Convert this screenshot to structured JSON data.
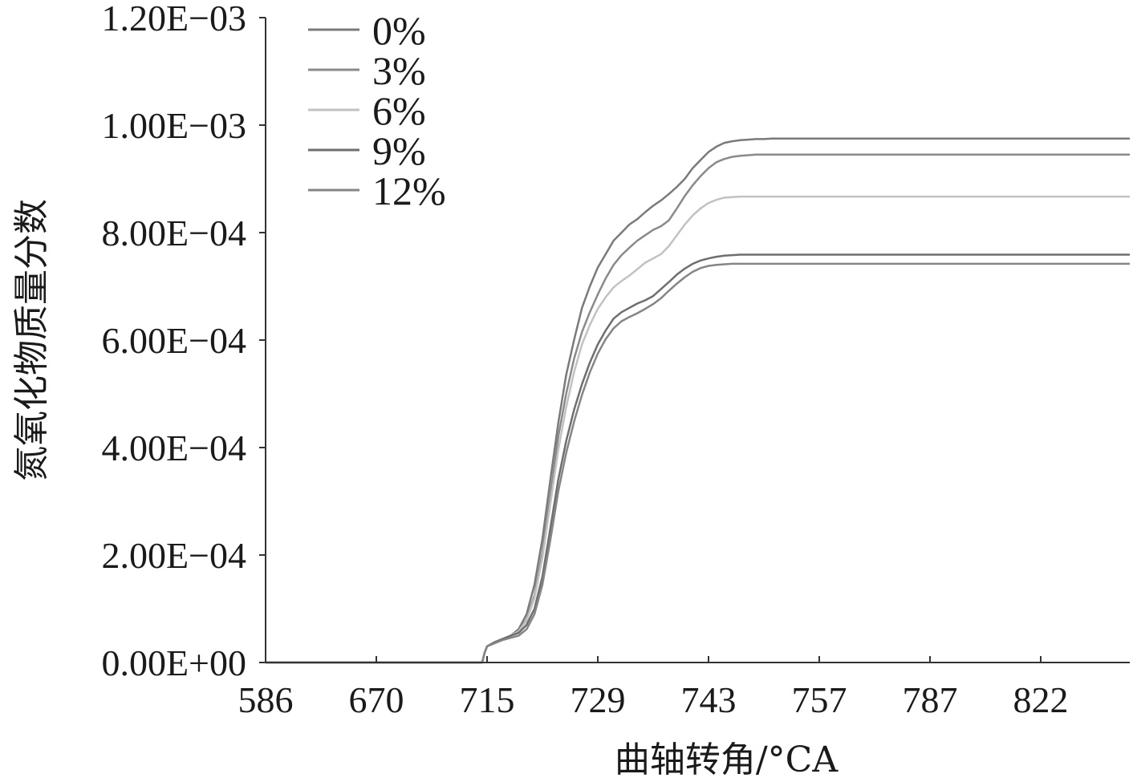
{
  "chart_data": {
    "type": "line",
    "xlabel": "曲轴转角/°CA",
    "ylabel": "氮氧化物质量分数",
    "x_tick_labels": [
      "586",
      "670",
      "715",
      "729",
      "743",
      "757",
      "787",
      "822"
    ],
    "y_tick_labels": [
      "0.00E+00",
      "2.00E−04",
      "4.00E−04",
      "6.00E−04",
      "8.00E−04",
      "1.00E−03",
      "1.20E−03"
    ],
    "ylim": [
      0,
      0.0012
    ],
    "grid": false,
    "legend_position": "top-left",
    "x": [
      713.0,
      714.0,
      715.0,
      716.0,
      717.0,
      718.0,
      719.0,
      720.0,
      721.0,
      722.0,
      723.0,
      724.0,
      725.0,
      726.0,
      727.0,
      728.0,
      729.0,
      730.0,
      731.0,
      732.0,
      733.0,
      734.0,
      735.0,
      736.0,
      737.0,
      738.0,
      739.0,
      740.0,
      741.0,
      742.0,
      743.0,
      744.0,
      745.0,
      746.0,
      747.0,
      748.0,
      749.0,
      750.0,
      751.0,
      752.0,
      753.0,
      754.0,
      755.0,
      756.0,
      757.0,
      762.0,
      787.0,
      822.0,
      850.0
    ],
    "series": [
      {
        "name": "0%",
        "color": "#7a7a7a",
        "values": [
          0.0,
          1.8e-05,
          3e-05,
          3.8e-05,
          4.4e-05,
          5e-05,
          6.2e-05,
          9e-05,
          0.000145,
          0.00023,
          0.00034,
          0.000445,
          0.000535,
          0.0006,
          0.00066,
          0.0007,
          0.000735,
          0.00076,
          0.000785,
          0.0008,
          0.000815,
          0.000825,
          0.000838,
          0.00085,
          0.00086,
          0.000872,
          0.000885,
          0.0009,
          0.00092,
          0.000935,
          0.00095,
          0.00096,
          0.000967,
          0.00097,
          0.000972,
          0.000973,
          0.000974,
          0.000974,
          0.000975,
          0.000975,
          0.000975,
          0.000975,
          0.000975,
          0.000975,
          0.000975,
          0.000975,
          0.000975,
          0.000975,
          0.000975
        ]
      },
      {
        "name": "3%",
        "color": "#8a8a8a",
        "values": [
          0.0,
          1.8e-05,
          3e-05,
          3.8e-05,
          4.4e-05,
          5e-05,
          5.8e-05,
          8e-05,
          0.000125,
          0.000205,
          0.00031,
          0.00042,
          0.0005,
          0.000565,
          0.000615,
          0.000652,
          0.000685,
          0.000715,
          0.00074,
          0.000758,
          0.000772,
          0.000785,
          0.000795,
          0.000805,
          0.000812,
          0.000823,
          0.000845,
          0.000868,
          0.000888,
          0.000905,
          0.00092,
          0.000931,
          0.000937,
          0.000941,
          0.000943,
          0.000944,
          0.000945,
          0.000945,
          0.000945,
          0.000945,
          0.000945,
          0.000945,
          0.000945,
          0.000945,
          0.000945,
          0.000945,
          0.000945,
          0.000945,
          0.000945
        ]
      },
      {
        "name": "6%",
        "color": "#c2c2c2",
        "values": [
          0.0,
          1.8e-05,
          3e-05,
          3.8e-05,
          4.4e-05,
          5e-05,
          5.8e-05,
          7.8e-05,
          0.00012,
          0.000195,
          0.000295,
          0.000395,
          0.000475,
          0.00054,
          0.000592,
          0.000628,
          0.000658,
          0.00068,
          0.000698,
          0.00071,
          0.00072,
          0.000732,
          0.000744,
          0.000752,
          0.00076,
          0.000775,
          0.000795,
          0.000815,
          0.000832,
          0.000845,
          0.000855,
          0.000861,
          0.000865,
          0.000866,
          0.000867,
          0.000867,
          0.000867,
          0.000867,
          0.000867,
          0.000867,
          0.000867,
          0.000867,
          0.000867,
          0.000867,
          0.000867,
          0.000867,
          0.000867,
          0.000867,
          0.000867
        ]
      },
      {
        "name": "9%",
        "color": "#6e6e6e",
        "values": [
          0.0,
          1.8e-05,
          3e-05,
          3.8e-05,
          4.4e-05,
          5e-05,
          5.5e-05,
          7e-05,
          0.0001,
          0.00016,
          0.00025,
          0.00034,
          0.000412,
          0.00047,
          0.000518,
          0.000558,
          0.000592,
          0.000618,
          0.00064,
          0.000652,
          0.00066,
          0.000668,
          0.000674,
          0.000682,
          0.000695,
          0.000708,
          0.000722,
          0.000733,
          0.000742,
          0.000748,
          0.000752,
          0.000755,
          0.000757,
          0.000758,
          0.000759,
          0.000759,
          0.000759,
          0.000759,
          0.000759,
          0.000759,
          0.000759,
          0.000759,
          0.000759,
          0.000759,
          0.000759,
          0.000759,
          0.000759,
          0.000759,
          0.000759
        ]
      },
      {
        "name": "12%",
        "color": "#858585",
        "values": [
          0.0,
          1.8e-05,
          3e-05,
          3.6e-05,
          4.2e-05,
          4.6e-05,
          5e-05,
          6.2e-05,
          9e-05,
          0.000145,
          0.000228,
          0.000318,
          0.00039,
          0.000448,
          0.000498,
          0.00054,
          0.000575,
          0.000602,
          0.000622,
          0.000635,
          0.000643,
          0.00065,
          0.000658,
          0.000667,
          0.000678,
          0.000692,
          0.000705,
          0.000717,
          0.000727,
          0.000734,
          0.000738,
          0.00074,
          0.000741,
          0.000742,
          0.000742,
          0.000742,
          0.000742,
          0.000742,
          0.000742,
          0.000742,
          0.000742,
          0.000742,
          0.000742,
          0.000742,
          0.000742,
          0.000742,
          0.000742,
          0.000742,
          0.000742
        ]
      }
    ]
  }
}
